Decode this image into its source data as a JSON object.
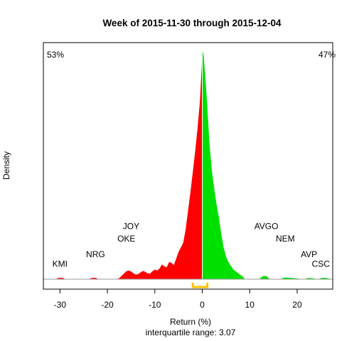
{
  "chart_data": {
    "type": "area",
    "title": "Week of 2015-11-30 through 2015-12-04",
    "xlabel": "Return (%)",
    "ylabel": "Density",
    "subtitle": "interquartile range: 3.07",
    "xlim": [
      -33.5,
      27.5
    ],
    "ylim": [
      0,
      1.0
    ],
    "xticks": [
      -30,
      -20,
      -10,
      0,
      10,
      20
    ],
    "pct_negative": "53%",
    "pct_positive": "47%",
    "iqr_range": [
      -2.0,
      1.07
    ],
    "colors": {
      "negative": "#ff0000",
      "positive": "#00e000",
      "iqr": "#ffc000",
      "axis": "#000000"
    },
    "density": {
      "x": [
        -31,
        -30.2,
        -29.4,
        -28.8,
        -24,
        -23.2,
        -22.5,
        -21.8,
        -18,
        -17.5,
        -17,
        -16.5,
        -16,
        -15.5,
        -15,
        -14.5,
        -14,
        -13.5,
        -13,
        -12.5,
        -12,
        -11.5,
        -11,
        -10.5,
        -10,
        -9.5,
        -9,
        -8.5,
        -8,
        -7.5,
        -7,
        -6.5,
        -6,
        -5.5,
        -5,
        -4.5,
        -4,
        -3.5,
        -3,
        -2.5,
        -2,
        -1.5,
        -1,
        -0.5,
        -0.2,
        0,
        0.1,
        0.3,
        0.6,
        1,
        1.5,
        2,
        2.5,
        3,
        3.5,
        4,
        4.5,
        5,
        5.5,
        6,
        6.5,
        7,
        7.5,
        8,
        8.5,
        9,
        12,
        12.8,
        13.5,
        14.2,
        16.5,
        17.2,
        17.9,
        21.5,
        22.2,
        22.9,
        24.5,
        25.2,
        25.9,
        27.5
      ],
      "y": [
        0,
        0.006,
        0.006,
        0,
        0,
        0.006,
        0.006,
        0,
        0,
        0.005,
        0.015,
        0.025,
        0.035,
        0.038,
        0.034,
        0.026,
        0.02,
        0.022,
        0.03,
        0.036,
        0.032,
        0.026,
        0.025,
        0.035,
        0.042,
        0.038,
        0.047,
        0.065,
        0.056,
        0.052,
        0.075,
        0.072,
        0.062,
        0.09,
        0.12,
        0.14,
        0.16,
        0.22,
        0.3,
        0.38,
        0.47,
        0.56,
        0.66,
        0.78,
        0.9,
        0.98,
        1.0,
        0.98,
        0.9,
        0.78,
        0.6,
        0.48,
        0.4,
        0.33,
        0.27,
        0.2,
        0.14,
        0.1,
        0.075,
        0.06,
        0.045,
        0.035,
        0.027,
        0.02,
        0.012,
        0,
        0,
        0.014,
        0.014,
        0,
        0,
        0.007,
        0.007,
        0,
        0.005,
        0.005,
        0,
        0.006,
        0.006,
        0
      ]
    },
    "annotations": [
      {
        "label": "KMI",
        "x": -30,
        "y": 0.055
      },
      {
        "label": "NRG",
        "x": -22.5,
        "y": 0.097
      },
      {
        "label": "JOY",
        "x": -15,
        "y": 0.22
      },
      {
        "label": "OKE",
        "x": -16,
        "y": 0.165
      },
      {
        "label": "AVGO",
        "x": 13.5,
        "y": 0.22
      },
      {
        "label": "NEM",
        "x": 17.5,
        "y": 0.165
      },
      {
        "label": "AVP",
        "x": 22.5,
        "y": 0.097
      },
      {
        "label": "CSC",
        "x": 25,
        "y": 0.055
      }
    ]
  }
}
